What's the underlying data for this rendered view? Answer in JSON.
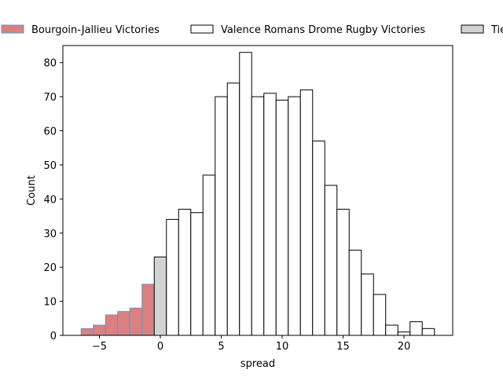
{
  "chart_data": {
    "type": "bar",
    "xlabel": "spread",
    "ylabel": "Count",
    "xlim": [
      -8,
      24
    ],
    "ylim": [
      0,
      85
    ],
    "x_ticks": [
      -5,
      0,
      5,
      10,
      15,
      20
    ],
    "y_ticks": [
      0,
      10,
      20,
      30,
      40,
      50,
      60,
      70,
      80
    ],
    "bin_width": 1,
    "legend": {
      "placement": "top, above plot",
      "entries": [
        {
          "label": "Bourgoin-Jallieu Victories",
          "color": "#dc7f80",
          "edge": "#4a9fd4"
        },
        {
          "label": "Valence Romans Drome Rugby Victories",
          "color": "#ffffff",
          "edge": "#000000"
        },
        {
          "label": "Ties",
          "color": "#d3d3d3",
          "edge": "#000000"
        }
      ]
    },
    "series": [
      {
        "name": "Bourgoin-Jallieu Victories",
        "color": "#dc7f80",
        "edge": "#4a9fd4",
        "x": [
          -6,
          -5,
          -4,
          -3,
          -2,
          -1
        ],
        "values": [
          2,
          3,
          6,
          7,
          8,
          15
        ]
      },
      {
        "name": "Ties",
        "color": "#d3d3d3",
        "edge": "#000000",
        "x": [
          0
        ],
        "values": [
          23
        ]
      },
      {
        "name": "Valence Romans Drome Rugby Victories",
        "color": "#ffffff",
        "edge": "#000000",
        "x": [
          1,
          2,
          3,
          4,
          5,
          6,
          7,
          8,
          9,
          10,
          11,
          12,
          13,
          14,
          15,
          16,
          17,
          18,
          19,
          20,
          21,
          22
        ],
        "values": [
          34,
          37,
          36,
          47,
          70,
          74,
          83,
          70,
          71,
          69,
          70,
          72,
          57,
          44,
          37,
          25,
          18,
          12,
          3,
          1,
          4,
          2
        ]
      }
    ]
  }
}
